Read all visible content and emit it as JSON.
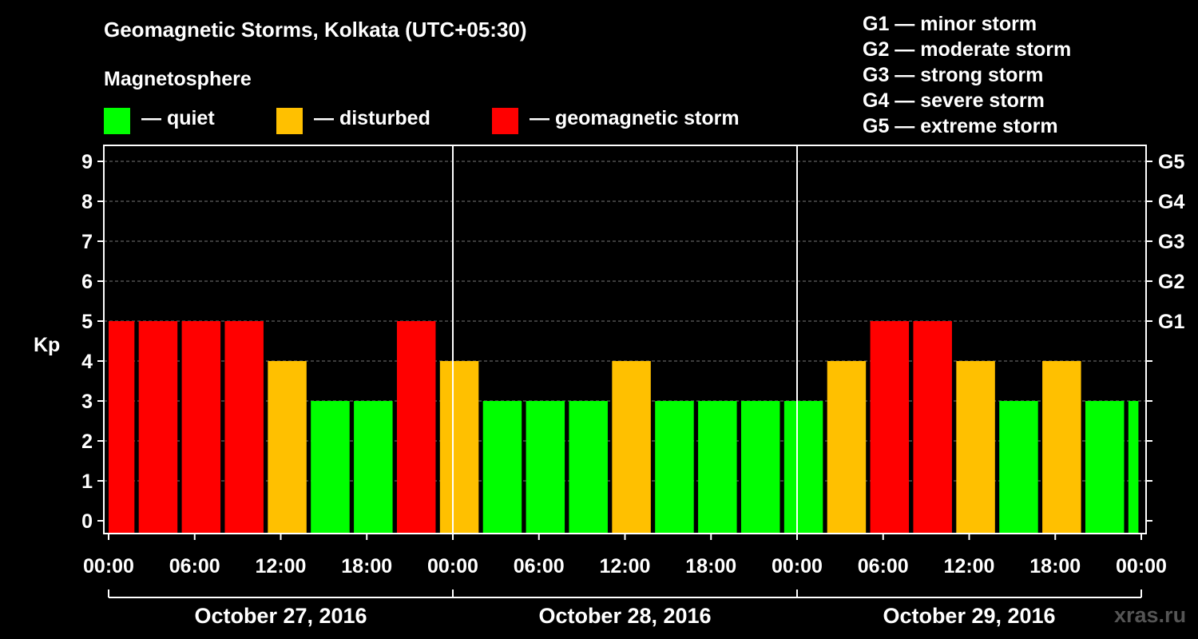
{
  "chart_data": {
    "type": "bar",
    "title": "Geomagnetic Storms, Kolkata (UTC+05:30)",
    "subtitle": "Magnetosphere",
    "ylabel": "Kp",
    "ylim": [
      0,
      9
    ],
    "yticks": [
      0,
      1,
      2,
      3,
      4,
      5,
      6,
      7,
      8,
      9
    ],
    "right_ticks": [
      {
        "kp": 5,
        "label": "G1"
      },
      {
        "kp": 6,
        "label": "G2"
      },
      {
        "kp": 7,
        "label": "G3"
      },
      {
        "kp": 8,
        "label": "G4"
      },
      {
        "kp": 9,
        "label": "G5"
      }
    ],
    "x_tick_labels": [
      "00:00",
      "06:00",
      "12:00",
      "18:00",
      "00:00",
      "06:00",
      "12:00",
      "18:00",
      "00:00",
      "06:00",
      "12:00",
      "18:00",
      "00:00"
    ],
    "x_range_hours": [
      0,
      72
    ],
    "day_labels": [
      "October 27, 2016",
      "October 28, 2016",
      "October 29, 2016"
    ],
    "bars": [
      {
        "start": 0,
        "end": 1.8,
        "kp": 5,
        "status": "storm"
      },
      {
        "start": 2.1,
        "end": 4.8,
        "kp": 5,
        "status": "storm"
      },
      {
        "start": 5.1,
        "end": 7.8,
        "kp": 5,
        "status": "storm"
      },
      {
        "start": 8.1,
        "end": 10.8,
        "kp": 5,
        "status": "storm"
      },
      {
        "start": 11.1,
        "end": 13.8,
        "kp": 4,
        "status": "disturbed"
      },
      {
        "start": 14.1,
        "end": 16.8,
        "kp": 3,
        "status": "quiet"
      },
      {
        "start": 17.1,
        "end": 19.8,
        "kp": 3,
        "status": "quiet"
      },
      {
        "start": 20.1,
        "end": 22.8,
        "kp": 5,
        "status": "storm"
      },
      {
        "start": 23.1,
        "end": 25.8,
        "kp": 4,
        "status": "disturbed"
      },
      {
        "start": 26.1,
        "end": 28.8,
        "kp": 3,
        "status": "quiet"
      },
      {
        "start": 29.1,
        "end": 31.8,
        "kp": 3,
        "status": "quiet"
      },
      {
        "start": 32.1,
        "end": 34.8,
        "kp": 3,
        "status": "quiet"
      },
      {
        "start": 35.1,
        "end": 37.8,
        "kp": 4,
        "status": "disturbed"
      },
      {
        "start": 38.1,
        "end": 40.8,
        "kp": 3,
        "status": "quiet"
      },
      {
        "start": 41.1,
        "end": 43.8,
        "kp": 3,
        "status": "quiet"
      },
      {
        "start": 44.1,
        "end": 46.8,
        "kp": 3,
        "status": "quiet"
      },
      {
        "start": 47.1,
        "end": 49.8,
        "kp": 3,
        "status": "quiet"
      },
      {
        "start": 50.1,
        "end": 52.8,
        "kp": 4,
        "status": "disturbed"
      },
      {
        "start": 53.1,
        "end": 55.8,
        "kp": 5,
        "status": "storm"
      },
      {
        "start": 56.1,
        "end": 58.8,
        "kp": 5,
        "status": "storm"
      },
      {
        "start": 59.1,
        "end": 61.8,
        "kp": 4,
        "status": "disturbed"
      },
      {
        "start": 62.1,
        "end": 64.8,
        "kp": 3,
        "status": "quiet"
      },
      {
        "start": 65.1,
        "end": 67.8,
        "kp": 4,
        "status": "disturbed"
      },
      {
        "start": 68.1,
        "end": 70.8,
        "kp": 3,
        "status": "quiet"
      },
      {
        "start": 71.1,
        "end": 71.8,
        "kp": 3,
        "status": "quiet"
      }
    ],
    "colors": {
      "quiet": "#00ff00",
      "disturbed": "#ffc000",
      "storm": "#ff0000"
    },
    "grid": true,
    "legend": [
      {
        "key": "quiet",
        "label": "— quiet"
      },
      {
        "key": "disturbed",
        "label": "— disturbed"
      },
      {
        "key": "storm",
        "label": "— geomagnetic storm"
      }
    ],
    "storm_scale": [
      "G1 — minor storm",
      "G2 — moderate storm",
      "G3 — strong storm",
      "G4 — severe storm",
      "G5 — extreme storm"
    ]
  },
  "watermark": "xras.ru"
}
